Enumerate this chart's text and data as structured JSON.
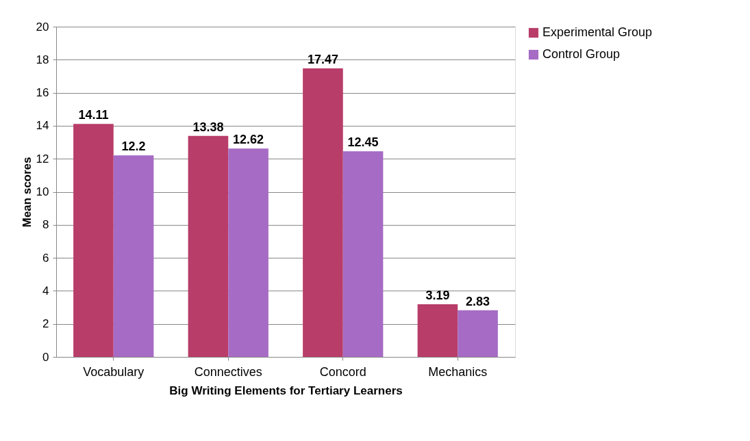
{
  "chart_data": {
    "type": "bar",
    "xlabel": "Big Writing Elements for Tertiary Learners",
    "ylabel": "Mean scores",
    "categories": [
      "Vocabulary",
      "Connectives",
      "Concord",
      "Mechanics"
    ],
    "series": [
      {
        "name": "Experimental Group",
        "color": "#b83d68",
        "values": [
          14.11,
          13.38,
          17.47,
          3.19
        ]
      },
      {
        "name": "Control Group",
        "color": "#a66bc4",
        "values": [
          12.2,
          12.62,
          12.45,
          2.83
        ]
      }
    ],
    "ylim": [
      0,
      20
    ],
    "yticks": [
      0,
      2,
      4,
      6,
      8,
      10,
      12,
      14,
      16,
      18,
      20
    ],
    "grid": "y",
    "legend": "right",
    "data_labels": true
  }
}
